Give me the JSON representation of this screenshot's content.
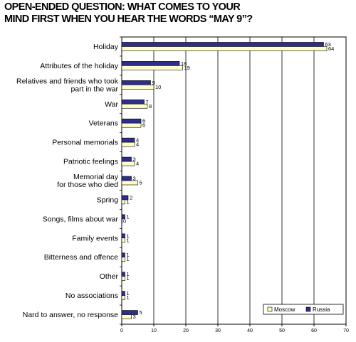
{
  "title": {
    "line1": "OPEN-ENDED QUESTION: WHAT COMES TO YOUR",
    "line2": "MIND FIRST WHEN YOU HEAR THE WORDS “MAY 9”?"
  },
  "colors": {
    "Russia": "#2e2e8e",
    "Moscow": "#ffffcc",
    "grid": "#000000"
  },
  "chart_data": {
    "type": "bar",
    "orientation": "horizontal",
    "title": "OPEN-ENDED QUESTION: WHAT COMES TO YOUR MIND FIRST WHEN YOU HEAR THE WORDS “MAY 9”?",
    "categories": [
      [
        "Holiday"
      ],
      [
        "Attributes of the holiday"
      ],
      [
        "Relatives and friends who took",
        "part in the war"
      ],
      [
        "War"
      ],
      [
        "Veterans"
      ],
      [
        "Personal memorials"
      ],
      [
        "Patriotic feelings"
      ],
      [
        "Memorial day",
        "for those who died"
      ],
      [
        "Spring"
      ],
      [
        "Songs, films about war"
      ],
      [
        "Family events"
      ],
      [
        "Bitterness and offence"
      ],
      [
        "Other"
      ],
      [
        "No associations"
      ],
      [
        "Nard to answer, no response"
      ]
    ],
    "series": [
      {
        "name": "Russia",
        "values": [
          63,
          18,
          9,
          7,
          6,
          4,
          3,
          3,
          2,
          1,
          1,
          1,
          1,
          1,
          5
        ]
      },
      {
        "name": "Moscow",
        "values": [
          64,
          19,
          10,
          8,
          6,
          4,
          4,
          5,
          1,
          0,
          1,
          1,
          1,
          1,
          3
        ]
      }
    ],
    "xlim": [
      0,
      70
    ],
    "xticks": [
      0,
      10,
      20,
      30,
      40,
      50,
      60,
      70
    ],
    "grid": true,
    "legend": {
      "position": "bottom-right",
      "order": [
        "Moscow",
        "Russia"
      ]
    }
  }
}
